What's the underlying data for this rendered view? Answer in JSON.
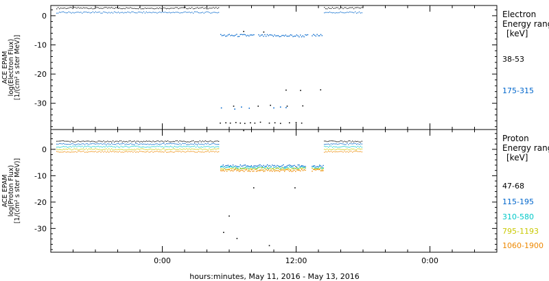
{
  "chart_data": [
    {
      "type": "scatter",
      "panel": "electron",
      "ylabel_lines": [
        "ACE EPAM",
        "log(Electron Flux)",
        "[1/(cm² s ster MeV)]"
      ],
      "ylim": [
        -39,
        3.5
      ],
      "yticks": [
        0,
        -10,
        -20,
        -30
      ],
      "legend_title": [
        "Electron",
        "Energy ranges",
        "[keV]"
      ],
      "series": [
        {
          "name": "38-53",
          "color": "#000000",
          "segments": [
            [
              -9.5,
              5.1,
              2.6
            ],
            [
              14.5,
              17.9,
              2.6
            ]
          ],
          "scatter": [
            [
              5.2,
              -36.8
            ],
            [
              5.7,
              -36.7
            ],
            [
              6.1,
              -36.8
            ],
            [
              6.6,
              -36.6
            ],
            [
              7.0,
              -36.8
            ],
            [
              7.4,
              -36.9
            ],
            [
              7.9,
              -36.7
            ],
            [
              8.3,
              -36.8
            ],
            [
              8.8,
              -36.5
            ],
            [
              9.6,
              -36.8
            ],
            [
              10.1,
              -36.7
            ],
            [
              10.6,
              -36.9
            ],
            [
              11.4,
              -36.7
            ],
            [
              12.0,
              -36.6
            ],
            [
              12.5,
              -36.8
            ],
            [
              6.4,
              -31.0
            ],
            [
              8.6,
              -31.0
            ],
            [
              9.7,
              -30.7
            ],
            [
              11.2,
              -31.0
            ],
            [
              12.6,
              -30.9
            ],
            [
              7.3,
              -5.4
            ],
            [
              9.1,
              -5.6
            ],
            [
              11.1,
              -25.5
            ],
            [
              12.4,
              -25.6
            ],
            [
              14.2,
              -25.4
            ]
          ]
        },
        {
          "name": "175-315",
          "color": "#0066cc",
          "segments": [
            [
              -9.5,
              5.1,
              1.1
            ],
            [
              14.5,
              17.9,
              1.1
            ]
          ],
          "plateau": [
            [
              5.2,
              8.2,
              -6.8
            ],
            [
              8.6,
              13.0,
              -6.9
            ],
            [
              13.4,
              14.3,
              -6.8
            ]
          ],
          "scatter": [
            [
              5.3,
              -31.6
            ],
            [
              6.5,
              -32.0
            ],
            [
              7.1,
              -31.3
            ],
            [
              7.8,
              -31.7
            ],
            [
              10.0,
              -31.6
            ],
            [
              10.6,
              -31.3
            ],
            [
              11.1,
              -31.5
            ]
          ]
        }
      ]
    },
    {
      "type": "scatter",
      "panel": "proton",
      "ylabel_lines": [
        "ACE EPAM",
        "log(Proton Flux)",
        "[1/(cm² s ster MeV)]"
      ],
      "ylim": [
        -39,
        7.5
      ],
      "yticks": [
        0,
        -10,
        -20,
        -30
      ],
      "legend_title": [
        "Proton",
        "Energy ranges",
        "[keV]"
      ],
      "series": [
        {
          "name": "47-68",
          "color": "#000000",
          "segments": [
            [
              -9.5,
              5.1,
              3.0
            ],
            [
              14.5,
              17.9,
              3.0
            ]
          ],
          "scatter": [
            [
              7.3,
              7.1
            ],
            [
              5.5,
              -31.5
            ],
            [
              6.0,
              -25.3
            ],
            [
              6.7,
              -33.8
            ],
            [
              9.6,
              -36.5
            ],
            [
              8.2,
              -14.6
            ],
            [
              11.9,
              -14.6
            ]
          ]
        },
        {
          "name": "115-195",
          "color": "#0066cc",
          "segments": [
            [
              -9.5,
              5.1,
              2.0
            ],
            [
              14.5,
              17.9,
              2.0
            ]
          ],
          "plateau": [
            [
              5.2,
              12.8,
              -6.3
            ],
            [
              13.4,
              14.4,
              -6.3
            ]
          ]
        },
        {
          "name": "310-580",
          "color": "#00c8c8",
          "segments": [
            [
              -9.5,
              5.1,
              1.0
            ],
            [
              14.5,
              17.9,
              1.0
            ]
          ],
          "plateau": [
            [
              5.2,
              12.8,
              -6.9
            ],
            [
              13.4,
              14.4,
              -6.9
            ]
          ]
        },
        {
          "name": "795-1193",
          "color": "#c8c800",
          "segments": [
            [
              -9.5,
              5.1,
              0.0
            ],
            [
              14.5,
              17.9,
              0.0
            ]
          ],
          "plateau": [
            [
              5.2,
              12.8,
              -7.4
            ],
            [
              13.4,
              14.4,
              -7.4
            ]
          ]
        },
        {
          "name": "1060-1900",
          "color": "#ee8800",
          "segments": [
            [
              -9.5,
              5.1,
              -0.9
            ],
            [
              14.5,
              17.9,
              -0.9
            ]
          ],
          "plateau": [
            [
              5.2,
              12.8,
              -8.0
            ],
            [
              13.4,
              14.4,
              -8.0
            ]
          ]
        }
      ]
    }
  ],
  "x_axis": {
    "label": "hours:minutes, May 11, 2016 - May 13, 2016",
    "range_hours": [
      -10,
      30
    ],
    "ticks": [
      {
        "value": 0,
        "label": "0:00"
      },
      {
        "value": 12,
        "label": "12:00"
      },
      {
        "value": 24,
        "label": "0:00"
      }
    ]
  }
}
